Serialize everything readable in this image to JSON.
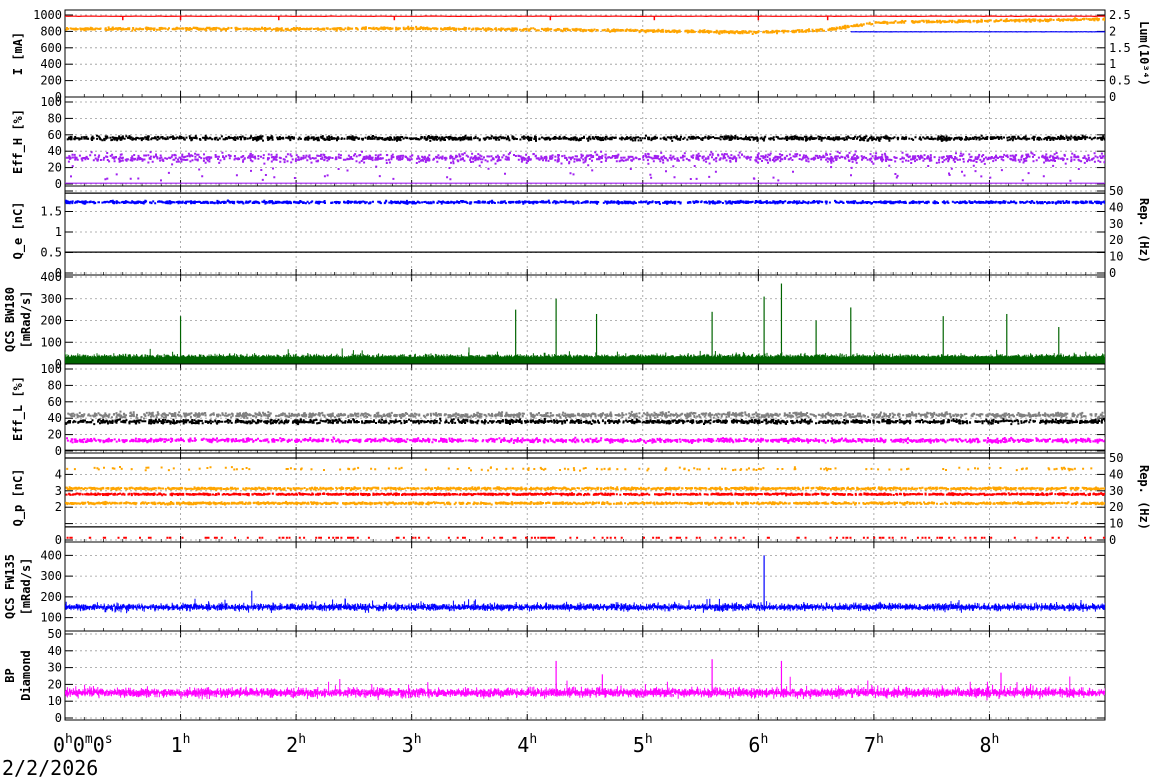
{
  "date": "2/2/2026",
  "x_axis": {
    "unit": "hours",
    "range": [
      0,
      9
    ],
    "ticks": [
      {
        "value": 0,
        "label": "0",
        "sup": "h",
        "tail": "0",
        "tail_sup": "m",
        "tail2": "0",
        "tail2_sup": "s"
      },
      {
        "value": 1,
        "label": "1",
        "sup": "h"
      },
      {
        "value": 2,
        "label": "2",
        "sup": "h"
      },
      {
        "value": 3,
        "label": "3",
        "sup": "h"
      },
      {
        "value": 4,
        "label": "4",
        "sup": "h"
      },
      {
        "value": 5,
        "label": "5",
        "sup": "h"
      },
      {
        "value": 6,
        "label": "6",
        "sup": "h"
      },
      {
        "value": 7,
        "label": "7",
        "sup": "h"
      },
      {
        "value": 8,
        "label": "8",
        "sup": "h"
      }
    ]
  },
  "colors": {
    "red": "#ff0000",
    "orange": "#ffa500",
    "blue": "#0000ff",
    "black": "#000000",
    "purple": "#a020f0",
    "green": "#006400",
    "gray": "#808080",
    "magenta": "#ff00ff"
  },
  "chart_data": [
    {
      "type": "scatter",
      "ylabel": "I [mA]",
      "ylim": [
        0,
        1000
      ],
      "yticks": [
        0,
        200,
        400,
        600,
        800,
        1000
      ],
      "right_axis": {
        "label": "Lum(10³⁴)",
        "ylim": [
          0,
          2.5
        ],
        "ticks": [
          "0",
          "0.5",
          "1",
          "1.5",
          "2",
          "2.5"
        ]
      },
      "grid": true,
      "series": [
        {
          "color": "#ff0000",
          "level": 985,
          "noise": 4,
          "style": "line",
          "dips": [
            0.5,
            1.0,
            1.85,
            2.85,
            4.2,
            5.1,
            6.0,
            6.6
          ]
        },
        {
          "color": "#0000ff",
          "level": 795,
          "noise": 2,
          "style": "line",
          "x_from": 6.8
        },
        {
          "color": "#ffa500",
          "points": [
            [
              0,
              840
            ],
            [
              1,
              845
            ],
            [
              2,
              840
            ],
            [
              3,
              850
            ],
            [
              4,
              835
            ],
            [
              5,
              820
            ],
            [
              6,
              800
            ],
            [
              6.6,
              830
            ],
            [
              7,
              920
            ],
            [
              8,
              940
            ],
            [
              9,
              960
            ]
          ],
          "noise": 25,
          "style": "dots"
        }
      ]
    },
    {
      "type": "scatter",
      "ylabel": "Eff_H [%]",
      "ylim": [
        0,
        100
      ],
      "yticks": [
        0,
        20,
        40,
        60,
        80,
        100
      ],
      "grid": true,
      "series": [
        {
          "color": "#000000",
          "level": 57,
          "noise": 4,
          "style": "dots"
        },
        {
          "color": "#a020f0",
          "level": 33,
          "noise": 9,
          "style": "dots",
          "dropouts": 0.05
        },
        {
          "color": "#a020f0",
          "level": 1,
          "noise": 0,
          "style": "line"
        }
      ]
    },
    {
      "type": "scatter",
      "ylabel": "Q_e [nC]",
      "ylim": [
        0,
        2
      ],
      "yticks": [
        "0",
        "0.5",
        "1",
        "1.5",
        ""
      ],
      "right_axis": {
        "label": "Rep. (Hz)",
        "ylim": [
          0,
          50
        ],
        "ticks": [
          "0",
          "10",
          "20",
          "30",
          "40",
          "50"
        ]
      },
      "grid": true,
      "series": [
        {
          "color": "#0000ff",
          "level": 1.75,
          "noise": 0.05,
          "style": "dots"
        },
        {
          "color": "#000000",
          "level": 0.51,
          "noise": 0,
          "style": "line"
        },
        {
          "color": "#000000",
          "level": 1.95,
          "noise": 0,
          "style": "line"
        }
      ]
    },
    {
      "type": "line",
      "ylabel": "QCS BW180 [mRad/s]",
      "ylim": [
        0,
        400
      ],
      "yticks": [
        0,
        100,
        200,
        300,
        400
      ],
      "grid": true,
      "series": [
        {
          "color": "#006400",
          "level": 30,
          "noise": 20,
          "style": "spiky",
          "spikes": [
            [
              1.0,
              220
            ],
            [
              3.9,
              250
            ],
            [
              4.25,
              300
            ],
            [
              4.6,
              230
            ],
            [
              5.6,
              240
            ],
            [
              6.05,
              310
            ],
            [
              6.2,
              370
            ],
            [
              6.5,
              200
            ],
            [
              6.8,
              260
            ],
            [
              7.6,
              220
            ],
            [
              8.15,
              230
            ],
            [
              8.6,
              170
            ]
          ]
        }
      ]
    },
    {
      "type": "scatter",
      "ylabel": "Eff_L [%]",
      "ylim": [
        0,
        100
      ],
      "yticks": [
        0,
        20,
        40,
        60,
        80,
        100
      ],
      "grid": true,
      "series": [
        {
          "color": "#808080",
          "level": 45,
          "noise": 5,
          "style": "dots"
        },
        {
          "color": "#000000",
          "level": 37,
          "noise": 4,
          "style": "dots"
        },
        {
          "color": "#ff00ff",
          "level": 14,
          "noise": 4,
          "style": "dots"
        },
        {
          "color": "#000000",
          "level": 1,
          "noise": 0,
          "style": "line"
        }
      ]
    },
    {
      "type": "scatter",
      "ylabel": "Q_p [nC]",
      "ylim": [
        0,
        5
      ],
      "yticks": [
        "0",
        "",
        "2",
        "3",
        "4",
        ""
      ],
      "right_axis": {
        "label": "Rep. (Hz)",
        "ylim": [
          0,
          50
        ],
        "ticks": [
          "0",
          "10",
          "20",
          "30",
          "40",
          "50"
        ]
      },
      "grid": true,
      "series": [
        {
          "color": "#ffa500",
          "level": 3.2,
          "noise": 0.1,
          "style": "dots"
        },
        {
          "color": "#ff0000",
          "level": 2.85,
          "noise": 0.08,
          "style": "dots"
        },
        {
          "color": "#ffa500",
          "level": 2.3,
          "noise": 0.1,
          "style": "dots"
        },
        {
          "color": "#ffa500",
          "level": 4.4,
          "noise": 0.15,
          "style": "sparse"
        },
        {
          "color": "#000000",
          "level": 0.8,
          "noise": 0,
          "style": "line"
        },
        {
          "color": "#000000",
          "level": 5.0,
          "noise": 0,
          "style": "line"
        },
        {
          "color": "#ff0000",
          "level": 0.2,
          "noise": 0,
          "style": "sparse"
        }
      ]
    },
    {
      "type": "line",
      "ylabel": "QCS FW135 [mRad/s]",
      "ylim": [
        50,
        450
      ],
      "yticks": [
        100,
        200,
        300,
        400
      ],
      "grid": true,
      "series": [
        {
          "color": "#0000ff",
          "level": 150,
          "noise": 25,
          "style": "band",
          "spikes": [
            [
              6.05,
              400
            ]
          ]
        }
      ]
    },
    {
      "type": "line",
      "ylabel": "BP Diamond",
      "ylim": [
        0,
        50
      ],
      "yticks": [
        0,
        10,
        20,
        30,
        40,
        50
      ],
      "grid": true,
      "series": [
        {
          "color": "#ff00ff",
          "level": 15,
          "noise": 4,
          "style": "band",
          "spikes": [
            [
              4.25,
              34
            ],
            [
              5.6,
              35
            ],
            [
              6.2,
              34
            ],
            [
              4.65,
              26
            ],
            [
              8.1,
              27
            ]
          ]
        }
      ]
    }
  ]
}
